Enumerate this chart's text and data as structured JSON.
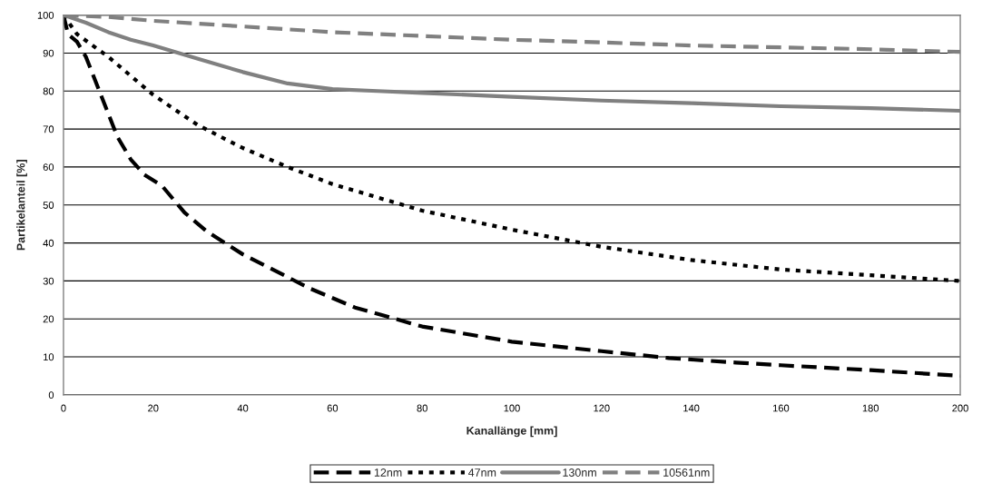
{
  "chart_data": {
    "type": "line",
    "xlabel": "Kanallänge [mm]",
    "ylabel": "Partikelanteil [%]",
    "xlim": [
      0,
      200
    ],
    "ylim": [
      0,
      100
    ],
    "xticks": [
      0,
      20,
      40,
      60,
      80,
      100,
      120,
      140,
      160,
      180,
      200
    ],
    "yticks": [
      0,
      10,
      20,
      30,
      40,
      50,
      60,
      70,
      80,
      90,
      100
    ],
    "grid": "y",
    "legend": "bottom",
    "series": [
      {
        "name": "12nm",
        "color": "#000000",
        "line_style": "dashed",
        "x": [
          0,
          1,
          3,
          5,
          8,
          12,
          15,
          18,
          22,
          27,
          32,
          40,
          45,
          55,
          65,
          80,
          100,
          120,
          135,
          150,
          160,
          180,
          200
        ],
        "values": [
          100,
          95,
          93,
          89,
          80,
          68,
          62,
          58,
          55,
          48,
          43,
          37,
          34,
          28,
          23,
          18,
          14,
          11.5,
          9.7,
          8.5,
          7.8,
          6.5,
          5
        ]
      },
      {
        "name": "47nm",
        "color": "#000000",
        "line_style": "dotted",
        "x": [
          0,
          3,
          10,
          20,
          30,
          40,
          50,
          60,
          70,
          80,
          100,
          120,
          140,
          160,
          180,
          200
        ],
        "values": [
          100,
          95,
          89,
          79,
          71,
          65,
          60,
          55.5,
          52,
          48.5,
          43.5,
          39,
          35.5,
          33,
          31.5,
          30
        ]
      },
      {
        "name": "130nm",
        "color": "#808080",
        "line_style": "solid",
        "x": [
          0,
          5,
          10,
          15,
          20,
          30,
          40,
          50,
          60,
          70,
          80,
          100,
          120,
          140,
          160,
          180,
          200
        ],
        "values": [
          100,
          98,
          95.5,
          93.5,
          92,
          88.5,
          85,
          82,
          80.5,
          80,
          79.5,
          78.5,
          77.5,
          76.8,
          76,
          75.5,
          74.8
        ]
      },
      {
        "name": "10561nm",
        "color": "#808080",
        "line_style": "dashed",
        "x": [
          0,
          10,
          20,
          40,
          60,
          80,
          100,
          120,
          140,
          160,
          180,
          200
        ],
        "values": [
          100,
          99.5,
          98.5,
          97,
          95.5,
          94.5,
          93.5,
          92.8,
          92,
          91.5,
          91,
          90.3
        ]
      }
    ]
  }
}
